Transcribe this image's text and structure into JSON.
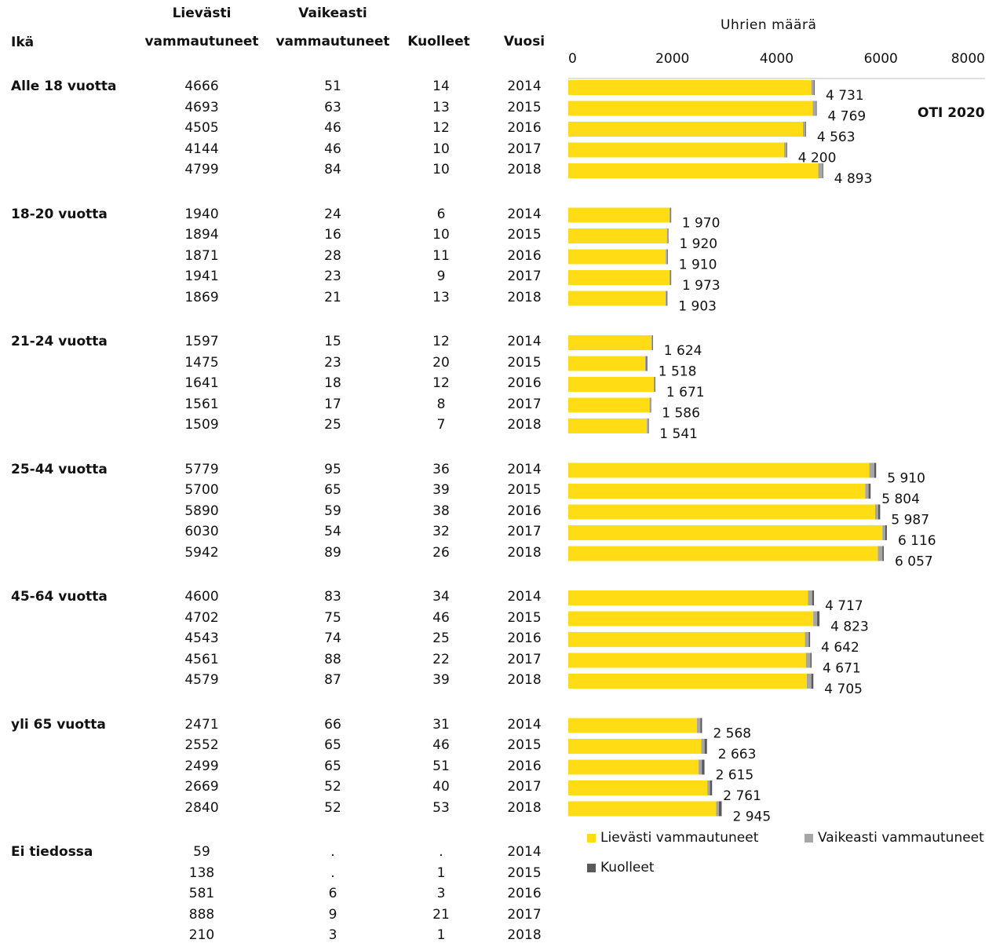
{
  "headers": {
    "age": "Ikä",
    "light_line1": "Lievästi",
    "light_line2": "vammautuneet",
    "severe_line1": "Vaikeasti",
    "severe_line2": "vammautuneet",
    "dead": "Kuolleet",
    "year": "Vuosi"
  },
  "axis_title": "Uhrien määrä",
  "source": "OTI 2020",
  "legend": {
    "light": "Lievästi vammautuneet",
    "severe": "Vaikeasti vammautuneet",
    "dead": "Kuolleet"
  },
  "colors": {
    "light": "#FFDC14",
    "severe": "#A6A6A6",
    "dead": "#595959",
    "axis": "#BFBFBF"
  },
  "groups": [
    {
      "name": "Alle 18 vuotta",
      "rows": [
        {
          "light": "4666",
          "severe": "51",
          "dead": "14",
          "year": "2014",
          "total": "4 731"
        },
        {
          "light": "4693",
          "severe": "63",
          "dead": "13",
          "year": "2015",
          "total": "4 769"
        },
        {
          "light": "4505",
          "severe": "46",
          "dead": "12",
          "year": "2016",
          "total": "4 563"
        },
        {
          "light": "4144",
          "severe": "46",
          "dead": "10",
          "year": "2017",
          "total": "4 200"
        },
        {
          "light": "4799",
          "severe": "84",
          "dead": "10",
          "year": "2018",
          "total": "4 893"
        }
      ]
    },
    {
      "name": "18-20 vuotta",
      "rows": [
        {
          "light": "1940",
          "severe": "24",
          "dead": "6",
          "year": "2014",
          "total": "1 970"
        },
        {
          "light": "1894",
          "severe": "16",
          "dead": "10",
          "year": "2015",
          "total": "1 920"
        },
        {
          "light": "1871",
          "severe": "28",
          "dead": "11",
          "year": "2016",
          "total": "1 910"
        },
        {
          "light": "1941",
          "severe": "23",
          "dead": "9",
          "year": "2017",
          "total": "1 973"
        },
        {
          "light": "1869",
          "severe": "21",
          "dead": "13",
          "year": "2018",
          "total": "1 903"
        }
      ]
    },
    {
      "name": "21-24 vuotta",
      "rows": [
        {
          "light": "1597",
          "severe": "15",
          "dead": "12",
          "year": "2014",
          "total": "1 624"
        },
        {
          "light": "1475",
          "severe": "23",
          "dead": "20",
          "year": "2015",
          "total": "1 518"
        },
        {
          "light": "1641",
          "severe": "18",
          "dead": "12",
          "year": "2016",
          "total": "1 671"
        },
        {
          "light": "1561",
          "severe": "17",
          "dead": "8",
          "year": "2017",
          "total": "1 586"
        },
        {
          "light": "1509",
          "severe": "25",
          "dead": "7",
          "year": "2018",
          "total": "1 541"
        }
      ]
    },
    {
      "name": "25-44 vuotta",
      "rows": [
        {
          "light": "5779",
          "severe": "95",
          "dead": "36",
          "year": "2014",
          "total": "5 910"
        },
        {
          "light": "5700",
          "severe": "65",
          "dead": "39",
          "year": "2015",
          "total": "5 804"
        },
        {
          "light": "5890",
          "severe": "59",
          "dead": "38",
          "year": "2016",
          "total": "5 987"
        },
        {
          "light": "6030",
          "severe": "54",
          "dead": "32",
          "year": "2017",
          "total": "6 116"
        },
        {
          "light": "5942",
          "severe": "89",
          "dead": "26",
          "year": "2018",
          "total": "6 057"
        }
      ]
    },
    {
      "name": "45-64 vuotta",
      "rows": [
        {
          "light": "4600",
          "severe": "83",
          "dead": "34",
          "year": "2014",
          "total": "4 717"
        },
        {
          "light": "4702",
          "severe": "75",
          "dead": "46",
          "year": "2015",
          "total": "4 823"
        },
        {
          "light": "4543",
          "severe": "74",
          "dead": "25",
          "year": "2016",
          "total": "4 642"
        },
        {
          "light": "4561",
          "severe": "88",
          "dead": "22",
          "year": "2017",
          "total": "4 671"
        },
        {
          "light": "4579",
          "severe": "87",
          "dead": "39",
          "year": "2018",
          "total": "4 705"
        }
      ]
    },
    {
      "name": "yli 65 vuotta",
      "rows": [
        {
          "light": "2471",
          "severe": "66",
          "dead": "31",
          "year": "2014",
          "total": "2 568"
        },
        {
          "light": "2552",
          "severe": "65",
          "dead": "46",
          "year": "2015",
          "total": "2 663"
        },
        {
          "light": "2499",
          "severe": "65",
          "dead": "51",
          "year": "2016",
          "total": "2 615"
        },
        {
          "light": "2669",
          "severe": "52",
          "dead": "40",
          "year": "2017",
          "total": "2 761"
        },
        {
          "light": "2840",
          "severe": "52",
          "dead": "53",
          "year": "2018",
          "total": "2 945"
        }
      ]
    },
    {
      "name": "Ei tiedossa",
      "rows": [
        {
          "light": "59",
          "severe": ".",
          "dead": ".",
          "year": "2014"
        },
        {
          "light": "138",
          "severe": ".",
          "dead": "1",
          "year": "2015"
        },
        {
          "light": "581",
          "severe": "6",
          "dead": "3",
          "year": "2016"
        },
        {
          "light": "888",
          "severe": "9",
          "dead": "21",
          "year": "2017"
        },
        {
          "light": "210",
          "severe": "3",
          "dead": "1",
          "year": "2018"
        }
      ]
    }
  ],
  "chart_data": {
    "type": "bar",
    "orientation": "horizontal",
    "stacked": true,
    "title": "Uhrien määrä",
    "xlim": [
      0,
      8000
    ],
    "xticks": [
      "0",
      "2000",
      "4000",
      "6000",
      "8000"
    ],
    "axis_position": "top",
    "grid": false,
    "legend_position": "bottom-right",
    "categories": [
      "Alle 18 vuotta 2014",
      "Alle 18 vuotta 2015",
      "Alle 18 vuotta 2016",
      "Alle 18 vuotta 2017",
      "Alle 18 vuotta 2018",
      "18-20 vuotta 2014",
      "18-20 vuotta 2015",
      "18-20 vuotta 2016",
      "18-20 vuotta 2017",
      "18-20 vuotta 2018",
      "21-24 vuotta 2014",
      "21-24 vuotta 2015",
      "21-24 vuotta 2016",
      "21-24 vuotta 2017",
      "21-24 vuotta 2018",
      "25-44 vuotta 2014",
      "25-44 vuotta 2015",
      "25-44 vuotta 2016",
      "25-44 vuotta 2017",
      "25-44 vuotta 2018",
      "45-64 vuotta 2014",
      "45-64 vuotta 2015",
      "45-64 vuotta 2016",
      "45-64 vuotta 2017",
      "45-64 vuotta 2018",
      "yli 65 vuotta 2014",
      "yli 65 vuotta 2015",
      "yli 65 vuotta 2016",
      "yli 65 vuotta 2017",
      "yli 65 vuotta 2018"
    ],
    "series": [
      {
        "name": "Lievästi vammautuneet",
        "values": [
          4666,
          4693,
          4505,
          4144,
          4799,
          1940,
          1894,
          1871,
          1941,
          1869,
          1597,
          1475,
          1641,
          1561,
          1509,
          5779,
          5700,
          5890,
          6030,
          5942,
          4600,
          4702,
          4543,
          4561,
          4579,
          2471,
          2552,
          2499,
          2669,
          2840
        ]
      },
      {
        "name": "Vaikeasti vammautuneet",
        "values": [
          51,
          63,
          46,
          46,
          84,
          24,
          16,
          28,
          23,
          21,
          15,
          23,
          18,
          17,
          25,
          95,
          65,
          59,
          54,
          89,
          83,
          75,
          74,
          88,
          87,
          66,
          65,
          65,
          52,
          52
        ]
      },
      {
        "name": "Kuolleet",
        "values": [
          14,
          13,
          12,
          10,
          10,
          6,
          10,
          11,
          9,
          13,
          12,
          20,
          12,
          8,
          7,
          36,
          39,
          38,
          32,
          26,
          34,
          46,
          25,
          22,
          39,
          31,
          46,
          51,
          40,
          53
        ]
      }
    ],
    "totals": [
      "4 731",
      "4 769",
      "4 563",
      "4 200",
      "4 893",
      "1 970",
      "1 920",
      "1 910",
      "1 973",
      "1 903",
      "1 624",
      "1 518",
      "1 671",
      "1 586",
      "1 541",
      "5 910",
      "5 804",
      "5 987",
      "6 116",
      "6 057",
      "4 717",
      "4 823",
      "4 642",
      "4 671",
      "4 705",
      "2 568",
      "2 663",
      "2 615",
      "2 761",
      "2 945"
    ]
  }
}
